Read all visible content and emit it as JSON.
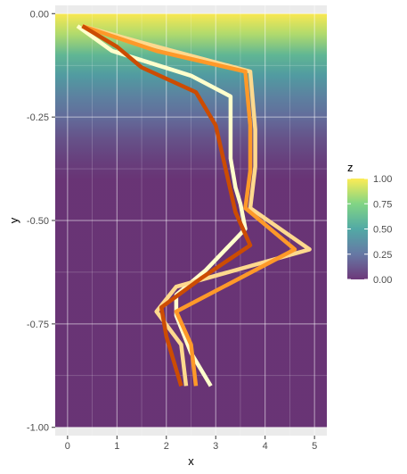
{
  "chart_data": {
    "type": "line",
    "title": "",
    "xlabel": "x",
    "ylabel": "y",
    "xlim": [
      -0.25,
      5.25
    ],
    "ylim": [
      -1.02,
      0.02
    ],
    "x_ticks": [
      0,
      1,
      2,
      3,
      4,
      5
    ],
    "x_tick_labels": [
      "0",
      "1",
      "2",
      "3",
      "4",
      "5"
    ],
    "y_ticks": [
      0,
      -0.25,
      -0.5,
      -0.75,
      -1
    ],
    "y_tick_labels": [
      "0.00",
      "-0.25",
      "-0.50",
      "-0.75",
      "-1.00"
    ],
    "grid": true,
    "background": {
      "variable": "z",
      "description": "z = 1 at y = 0, decreasing to 0 by y ≈ -0.4",
      "y_values": [
        0,
        -0.05,
        -0.1,
        -0.15,
        -0.2,
        -0.25,
        -0.3,
        -0.35,
        -0.4,
        -1.0
      ],
      "z_values": [
        1.0,
        0.85,
        0.6,
        0.45,
        0.32,
        0.22,
        0.12,
        0.05,
        0.0,
        0.0
      ]
    },
    "legend": {
      "title": "z",
      "position": "right",
      "labels": [
        "1.00",
        "0.75",
        "0.50",
        "0.25",
        "0.00"
      ],
      "values": [
        1.0,
        0.75,
        0.5,
        0.25,
        0.0
      ]
    },
    "series": [
      {
        "color": "#ffffcc",
        "x": [
          0.2,
          0.9,
          2.5,
          3.3,
          3.3,
          3.4,
          3.5,
          3.6,
          2.8,
          2.2,
          2.2,
          2.5,
          2.9
        ],
        "y": [
          -0.03,
          -0.09,
          -0.15,
          -0.2,
          -0.35,
          -0.42,
          -0.46,
          -0.52,
          -0.62,
          -0.68,
          -0.73,
          -0.82,
          -0.9
        ]
      },
      {
        "color": "#fed98e",
        "x": [
          0.3,
          1.5,
          3.7,
          3.8,
          3.8,
          3.7,
          4.9,
          2.2,
          1.8,
          2.3,
          2.4
        ],
        "y": [
          -0.03,
          -0.07,
          -0.14,
          -0.28,
          -0.37,
          -0.47,
          -0.57,
          -0.66,
          -0.72,
          -0.8,
          -0.9
        ]
      },
      {
        "color": "#fe9929",
        "x": [
          0.3,
          1.8,
          3.6,
          3.7,
          3.7,
          3.6,
          4.6,
          2.2,
          2.5,
          2.6
        ],
        "y": [
          -0.03,
          -0.09,
          -0.14,
          -0.27,
          -0.38,
          -0.47,
          -0.57,
          -0.72,
          -0.8,
          -0.9
        ]
      },
      {
        "color": "#cc4c02",
        "x": [
          0.3,
          1.0,
          1.5,
          2.6,
          3.0,
          3.4,
          3.7,
          2.7,
          1.9,
          2.0,
          2.3
        ],
        "y": [
          -0.03,
          -0.08,
          -0.13,
          -0.19,
          -0.27,
          -0.48,
          -0.56,
          -0.64,
          -0.71,
          -0.78,
          -0.9
        ]
      }
    ]
  }
}
